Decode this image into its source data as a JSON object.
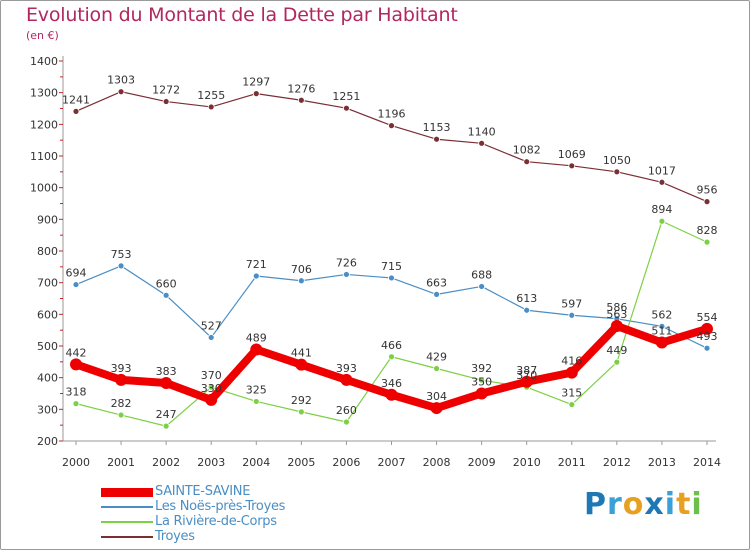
{
  "title": "Evolution du Montant de la Dette par Habitant",
  "subtitle": "(en €)",
  "logo": {
    "text": "Proxiti",
    "colors": [
      "#1e78b4",
      "#3aa0d8",
      "#e8a020",
      "#1e78b4",
      "#3aa0d8",
      "#e8a020",
      "#6cc04a"
    ]
  },
  "chart_data": {
    "type": "line",
    "title": "Evolution du Montant de la Dette par Habitant",
    "subtitle": "(en €)",
    "x": [
      "2000",
      "2001",
      "2002",
      "2003",
      "2004",
      "2005",
      "2006",
      "2007",
      "2008",
      "2009",
      "2010",
      "2011",
      "2012",
      "2013",
      "2014"
    ],
    "y_ticks": [
      200,
      300,
      400,
      500,
      600,
      700,
      800,
      900,
      1000,
      1100,
      1200,
      1300,
      1400
    ],
    "ylim": [
      200,
      1400
    ],
    "grid": false,
    "legend_position": "bottom-left",
    "series": [
      {
        "name": "SAINTE-SAVINE",
        "color": "#ee0000",
        "values": [
          442,
          393,
          383,
          330,
          489,
          441,
          393,
          346,
          304,
          350,
          387,
          416,
          563,
          511,
          554
        ],
        "labels": [
          "442",
          "393",
          "383",
          "330",
          "489",
          "441",
          "393",
          "346",
          "304",
          "350",
          "387",
          "416",
          "563",
          "511",
          "554"
        ]
      },
      {
        "name": "Les Noës-près-Troyes",
        "color": "#4a8ec5",
        "values": [
          694,
          753,
          660,
          527,
          721,
          706,
          726,
          715,
          663,
          688,
          613,
          597,
          586,
          562,
          493
        ],
        "labels": [
          "694",
          "753",
          "660",
          "527",
          "721",
          "706",
          "726",
          "715",
          "663",
          "688",
          "613",
          "597",
          "586",
          "562",
          "493"
        ]
      },
      {
        "name": "La Rivière-de-Corps",
        "color": "#7dd045",
        "values": [
          318,
          282,
          247,
          370,
          325,
          292,
          260,
          466,
          429,
          392,
          370,
          315,
          449,
          894,
          828
        ],
        "labels": [
          "318",
          "282",
          "247",
          "370",
          "325",
          "292",
          "260",
          "466",
          "429",
          "392",
          "370",
          "315",
          "449",
          "894",
          "828"
        ]
      },
      {
        "name": "Troyes",
        "color": "#7a2f35",
        "values": [
          1241,
          1303,
          1272,
          1255,
          1297,
          1276,
          1251,
          1196,
          1153,
          1140,
          1082,
          1069,
          1050,
          1017,
          956
        ],
        "labels": [
          "1241",
          "1303",
          "1272",
          "1255",
          "1297",
          "1276",
          "1251",
          "1196",
          "1153",
          "1140",
          "1082",
          "1069",
          "1050",
          "1017",
          "956"
        ]
      }
    ]
  }
}
